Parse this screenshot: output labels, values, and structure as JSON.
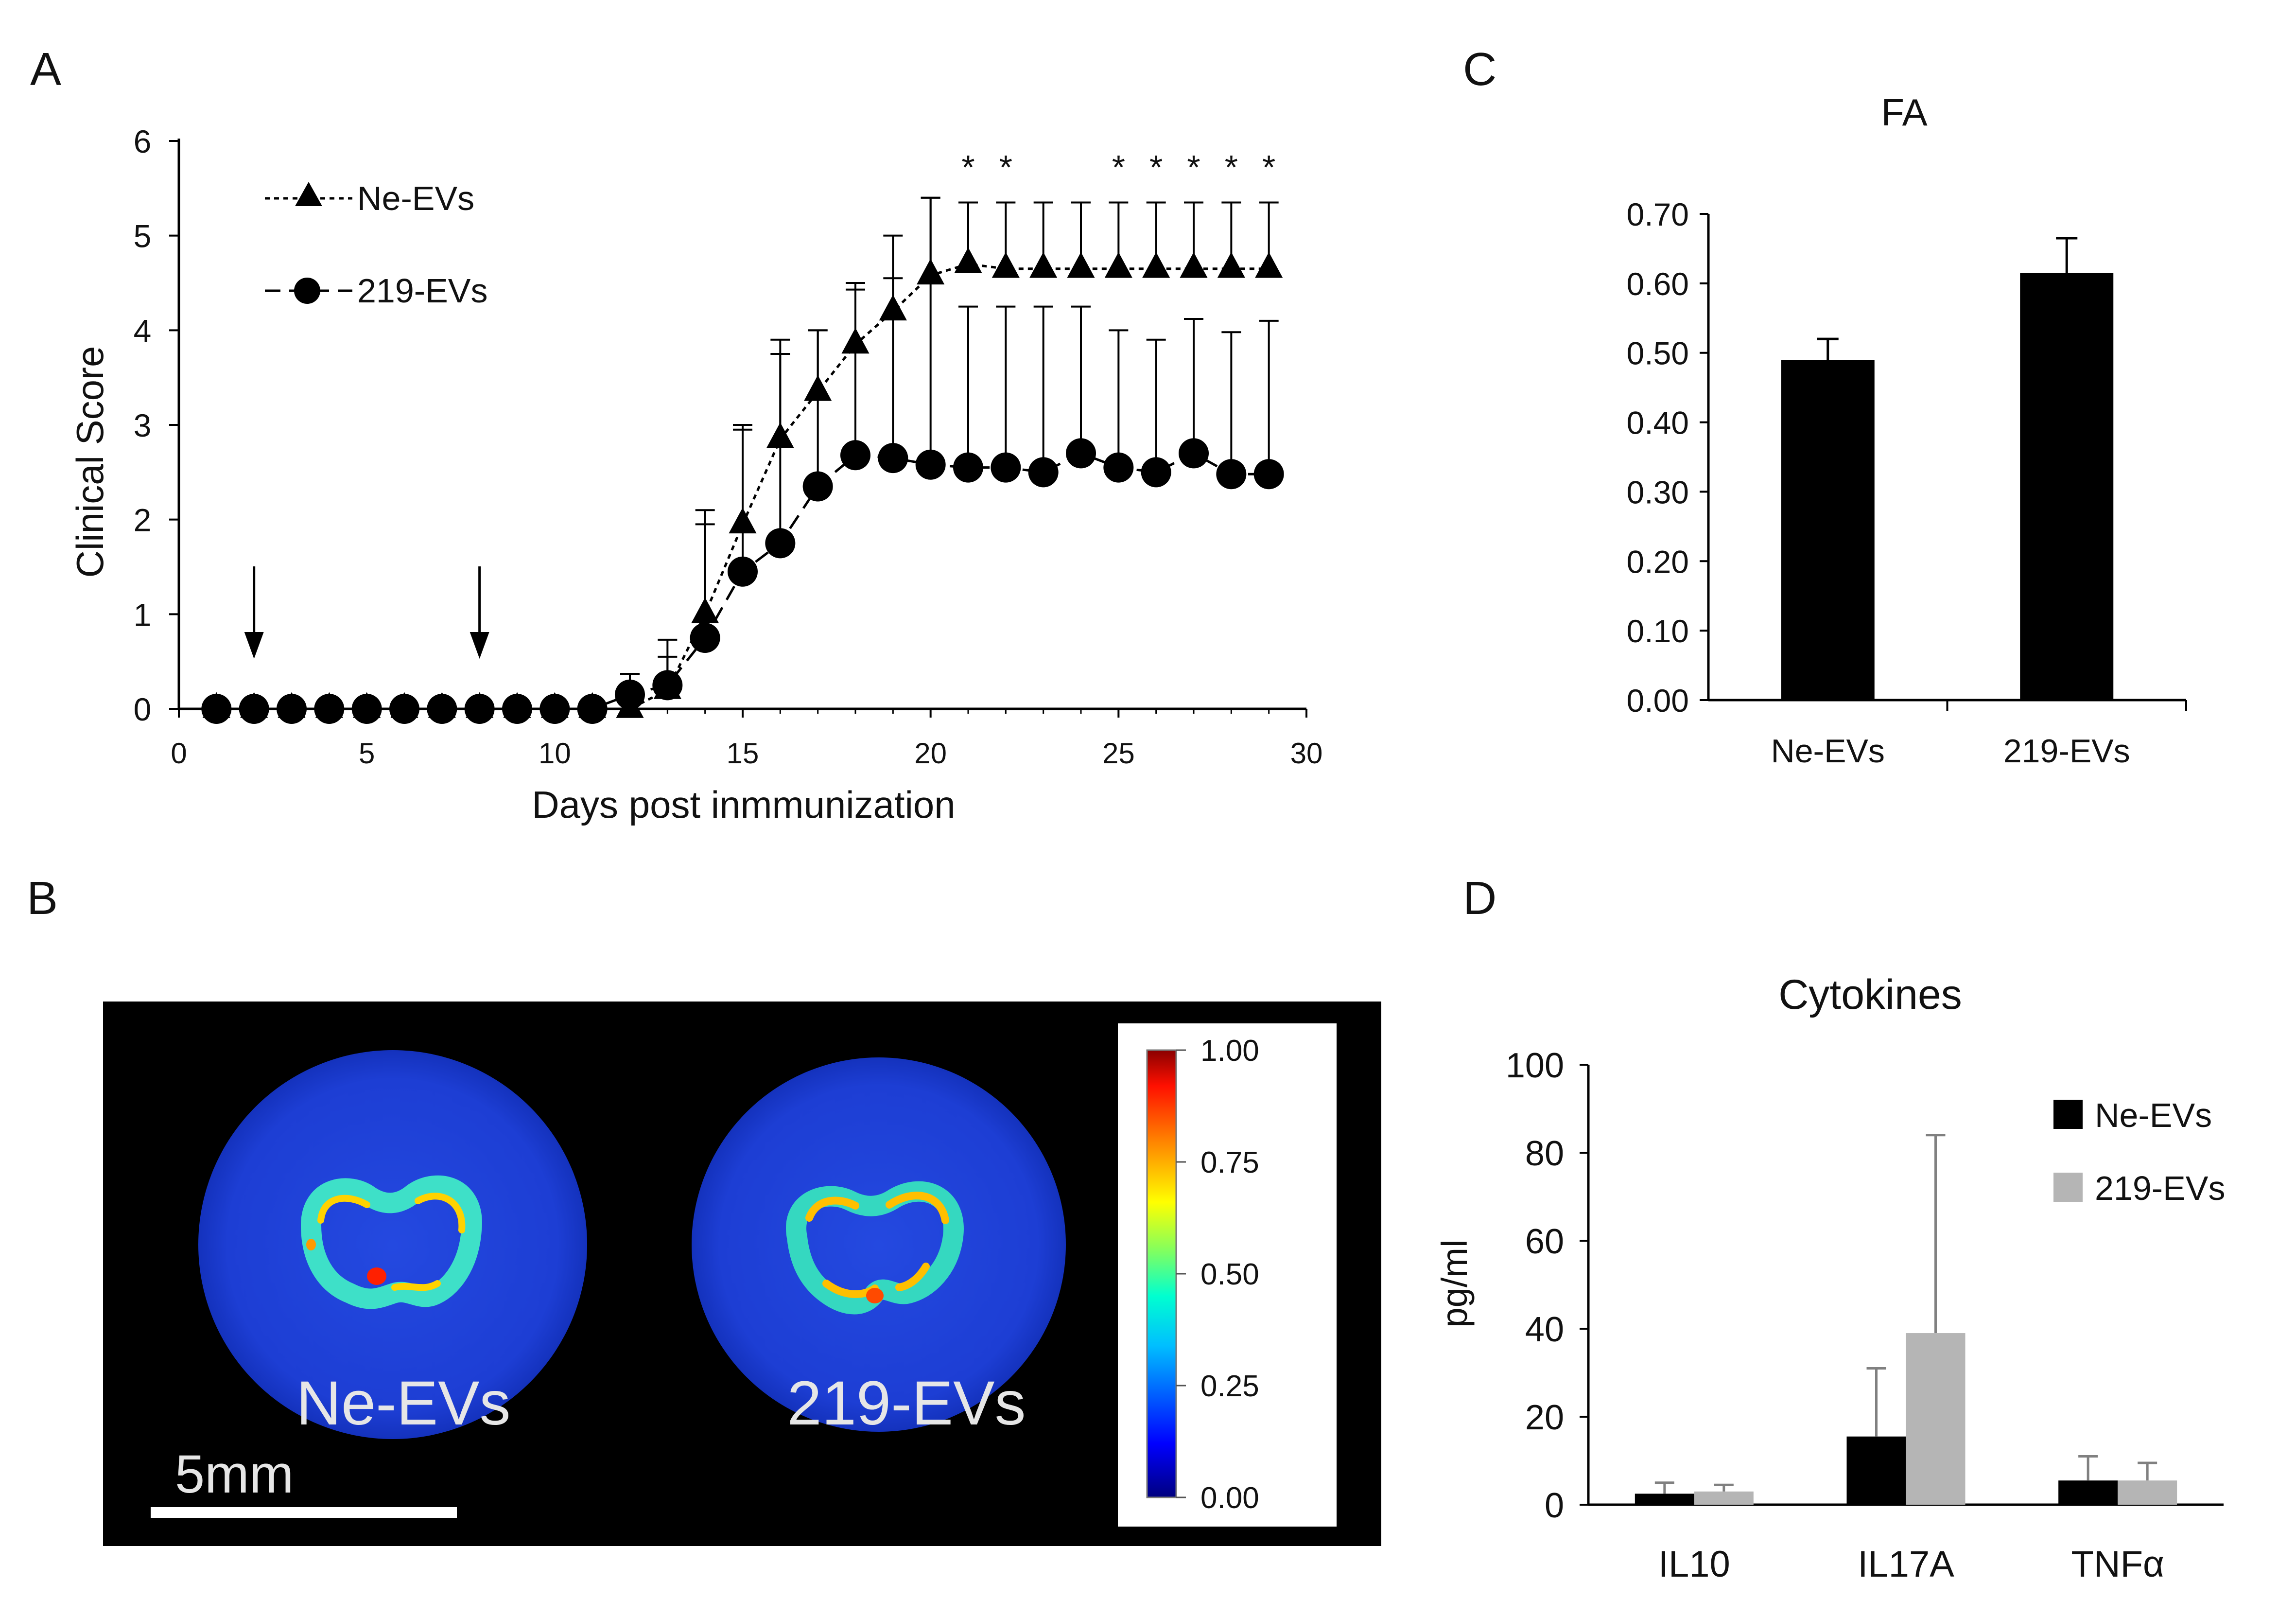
{
  "panels": {
    "A": {
      "letter": "A"
    },
    "B": {
      "letter": "B"
    },
    "C": {
      "letter": "C"
    },
    "D": {
      "letter": "D"
    }
  },
  "chart_data": [
    {
      "panel": "A",
      "type": "line",
      "title": "",
      "xlabel": "Days post inmmunization",
      "ylabel": "Clinical Score",
      "xlim": [
        0,
        30
      ],
      "ylim": [
        0,
        6
      ],
      "xticks": [
        0,
        5,
        10,
        15,
        20,
        25,
        30
      ],
      "yticks": [
        0,
        1,
        2,
        3,
        4,
        5,
        6
      ],
      "grid": false,
      "legend_position": "top-left",
      "x": [
        1,
        2,
        3,
        4,
        5,
        6,
        7,
        8,
        9,
        10,
        11,
        12,
        13,
        14,
        15,
        16,
        17,
        18,
        19,
        20,
        21,
        22,
        23,
        24,
        25,
        26,
        27,
        28,
        29
      ],
      "series": [
        {
          "name": "Ne-EVs",
          "marker": "triangle",
          "line": "dotted",
          "values": [
            0,
            0,
            0,
            0,
            0,
            0,
            0,
            0,
            0,
            0,
            0,
            0,
            0.2,
            1.0,
            1.95,
            2.85,
            3.35,
            3.85,
            4.2,
            4.58,
            4.7,
            4.65,
            4.65,
            4.65,
            4.65,
            4.65,
            4.65,
            4.65,
            4.65
          ],
          "errors": [
            0,
            0,
            0,
            0,
            0,
            0,
            0,
            0,
            0,
            0,
            0,
            0,
            0.35,
            1.1,
            1.05,
            1.05,
            0.65,
            0.65,
            0.8,
            0.82,
            0.65,
            0.7,
            0.7,
            0.7,
            0.7,
            0.7,
            0.7,
            0.7,
            0.7
          ]
        },
        {
          "name": "219-EVs",
          "marker": "circle",
          "line": "dashed",
          "values": [
            0,
            0,
            0,
            0,
            0,
            0,
            0,
            0,
            0,
            0,
            0,
            0.15,
            0.25,
            0.75,
            1.45,
            1.75,
            2.35,
            2.68,
            2.65,
            2.58,
            2.55,
            2.55,
            2.5,
            2.7,
            2.55,
            2.5,
            2.7,
            2.48,
            2.48
          ],
          "errors": [
            0,
            0,
            0,
            0,
            0,
            0,
            0,
            0,
            0,
            0,
            0,
            0.22,
            0.48,
            1.2,
            1.5,
            2.0,
            1.65,
            1.75,
            1.9,
            2.82,
            1.7,
            1.7,
            1.75,
            1.55,
            1.45,
            1.4,
            1.42,
            1.5,
            1.62
          ]
        }
      ],
      "arrows_at_x": [
        2,
        8
      ],
      "significance_marks": {
        "symbol": "*",
        "x": [
          21,
          22,
          25,
          26,
          27,
          28,
          29
        ]
      }
    },
    {
      "panel": "C",
      "type": "bar",
      "title": "FA",
      "xlabel": "",
      "ylabel": "",
      "categories": [
        "Ne-EVs",
        "219-EVs"
      ],
      "values": [
        0.49,
        0.615
      ],
      "errors": [
        0.03,
        0.05
      ],
      "ylim": [
        0,
        0.7
      ],
      "yticks": [
        "0.00",
        "0.10",
        "0.20",
        "0.30",
        "0.40",
        "0.50",
        "0.60",
        "0.70"
      ],
      "grid": false,
      "bar_color": "#000000"
    },
    {
      "panel": "D",
      "type": "bar",
      "title": "Cytokines",
      "xlabel": "",
      "ylabel": "pg/ml",
      "categories": [
        "IL10",
        "IL17A",
        "TNFα"
      ],
      "ylim": [
        0,
        100
      ],
      "yticks": [
        0,
        20,
        40,
        60,
        80,
        100
      ],
      "grid": false,
      "legend_position": "top-right",
      "series": [
        {
          "name": "Ne-EVs",
          "color": "#000000",
          "values": [
            2.5,
            15.5,
            5.5
          ],
          "errors": [
            2.5,
            15.5,
            5.5
          ]
        },
        {
          "name": "219-EVs",
          "color": "#b5b5b5",
          "values": [
            3.0,
            39.0,
            5.5
          ],
          "errors": [
            1.5,
            45.0,
            4.0
          ]
        }
      ]
    }
  ],
  "mri": {
    "labels": [
      "Ne-EVs",
      "219-EVs"
    ],
    "scale_bar_label": "5mm",
    "colorbar_ticks": [
      "1.00",
      "0.75",
      "0.50",
      "0.25",
      "0.00"
    ],
    "colormap": [
      "#00007f",
      "#0000ff",
      "#0080ff",
      "#00ffff",
      "#80ff80",
      "#ffff00",
      "#ff8000",
      "#ff0000",
      "#7f0000"
    ],
    "background": "#000000",
    "disc_color": "#1a3ad6"
  }
}
